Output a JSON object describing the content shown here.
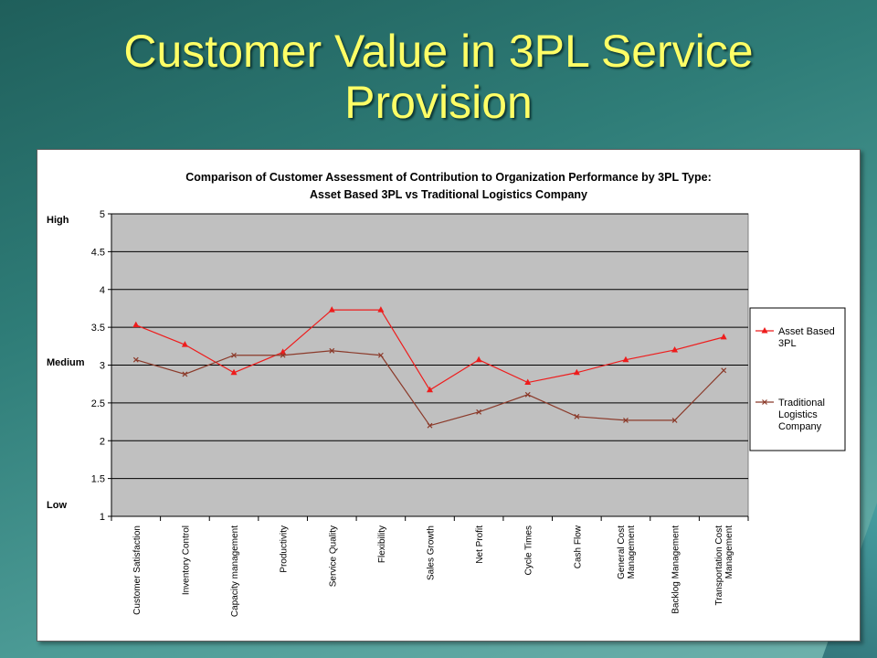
{
  "slide": {
    "title_line1": "Customer Value in 3PL Service",
    "title_line2": "Provision"
  },
  "colors": {
    "background": "#2f7d78",
    "title": "#ffff66",
    "plot_area": "#c0c0c0",
    "asset_series": "#ee1c1c",
    "traditional_series": "#8b3a2a"
  },
  "chart_data": {
    "type": "line",
    "title": "Comparison of Customer Assessment of Contribution to Organization Performance by 3PL Type:",
    "subtitle": "Asset Based 3PL vs Traditional Logistics Company",
    "ylim": [
      1,
      5
    ],
    "yticks": [
      "1",
      "1.5",
      "2",
      "2.5",
      "3",
      "3.5",
      "4",
      "4.5",
      "5"
    ],
    "y_annotations": [
      {
        "label": "High",
        "value": 4.93
      },
      {
        "label": "Medium",
        "value": 3.04
      },
      {
        "label": "Low",
        "value": 1.16
      }
    ],
    "grid": true,
    "legend_position": "right",
    "categories": [
      "Customer Satisfaction",
      "Inventory Control",
      "Capacity management",
      "Productivity",
      "Service Quality",
      "Flexibility",
      "Sales Growth",
      "Net Profit",
      "Cycle Times",
      "Cash Flow",
      "General Cost|Management",
      "Backlog Management",
      "Transportation Cost|Management"
    ],
    "series": [
      {
        "name": "Asset Based 3PL",
        "marker": "triangle",
        "values": [
          3.53,
          3.27,
          2.9,
          3.17,
          3.73,
          3.73,
          2.67,
          3.07,
          2.77,
          2.9,
          3.07,
          3.2,
          3.37
        ]
      },
      {
        "name": "Traditional Logistics Company",
        "marker": "x",
        "values": [
          3.07,
          2.88,
          3.13,
          3.13,
          3.19,
          3.13,
          2.2,
          2.38,
          2.61,
          2.32,
          2.27,
          2.27,
          2.93
        ]
      }
    ]
  }
}
